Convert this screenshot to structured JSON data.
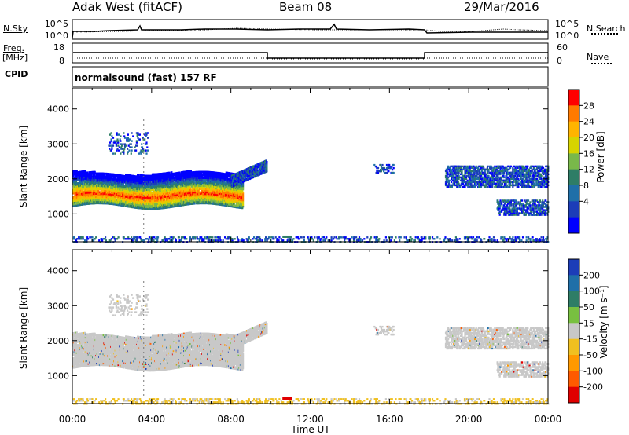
{
  "header": {
    "station": "Adak West (fitACF)",
    "beam": "Beam 08",
    "date": "29/Mar/2016"
  },
  "side_labels": {
    "nsky": "N.Sky",
    "nsearch": "N.Search",
    "freq": "Freq.",
    "freq_unit": "[MHz]",
    "nave": "Nave",
    "cpid": "CPID"
  },
  "cpid_text": "normalsound (fast) 157 RF",
  "noise_axis": {
    "left_ticks": [
      "10^5",
      "10^0"
    ],
    "right_ticks": [
      "10^5",
      "10^0"
    ]
  },
  "freq_axis": {
    "left_ticks": [
      "18",
      "8"
    ],
    "right_ticks": [
      "60",
      "0"
    ]
  },
  "chart_data": [
    {
      "type": "heatmap",
      "name": "power",
      "ylabel": "Slant Range [km]",
      "yticks": [
        "4000",
        "3000",
        "2000",
        "1000"
      ],
      "colorbar": {
        "label": "Power [dB]",
        "ticks": [
          "28",
          "24",
          "20",
          "16",
          "12",
          "8",
          "4"
        ],
        "colors": [
          "#ff0000",
          "#ff7a00",
          "#ffb400",
          "#d7d400",
          "#79b84a",
          "#2e7d66",
          "#1f6fa8",
          "#1c3db8",
          "#0000ff"
        ]
      }
    },
    {
      "type": "heatmap",
      "name": "velocity",
      "ylabel": "Slant Range [km]",
      "yticks": [
        "4000",
        "3000",
        "2000",
        "1000"
      ],
      "colorbar": {
        "label": "Velocity [m s⁻¹]",
        "ticks": [
          "200",
          "100",
          "50",
          "15",
          "-15",
          "-50",
          "-100",
          "-200"
        ],
        "colors": [
          "#1c3db8",
          "#1f6fa8",
          "#2e7d66",
          "#78c040",
          "#c8c8c8",
          "#f0c020",
          "#ff9900",
          "#ff5a00",
          "#e00000"
        ]
      }
    }
  ],
  "x_axis": {
    "ticks": [
      "00:00",
      "04:00",
      "08:00",
      "12:00",
      "16:00",
      "20:00",
      "00:00"
    ],
    "label": "Time UT"
  }
}
